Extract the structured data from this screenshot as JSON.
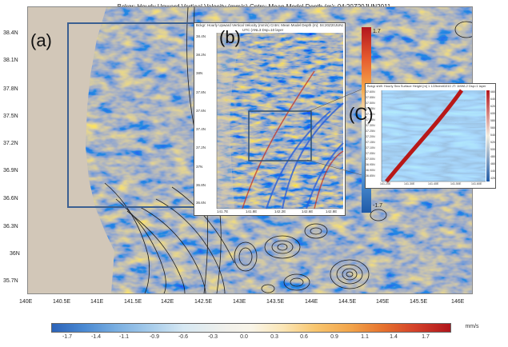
{
  "figure": {
    "title": "Bckgr: Hourly Upward Vertical Velocity (mm/s) Cntrs: Mean Model Depth (m): 04:20Z20JUN2011",
    "colors": {
      "land": "#d2c7b8",
      "frame_blue": "#3b5f91",
      "contour": "#1c1c1c"
    }
  },
  "main_map": {
    "panel_label": "(a)",
    "lat_labels": [
      "38.4N",
      "38.1N",
      "37.8N",
      "37.5N",
      "37.2N",
      "36.9N",
      "36.6N",
      "36.3N",
      "36N",
      "35.7N"
    ],
    "lon_labels": [
      "140E",
      "140.5E",
      "141E",
      "141.5E",
      "142E",
      "142.5E",
      "143E",
      "143.5E",
      "144E",
      "144.5E",
      "145E",
      "145.5E",
      "146E"
    ]
  },
  "inset_b": {
    "panel_label": "(b)",
    "title": "Bckgr: Hourly Upward Vertical Velocity (mm/s) Cntrs: Mean Model Depth (m): 04:20Z20JUN2011",
    "subtitle": "UTC (ANL3 Dsp=10 layer",
    "lat_labels": [
      "38.4N",
      "38.2N",
      "38N",
      "37.8N",
      "37.6N",
      "37.4N",
      "37.2N",
      "37N",
      "36.8N",
      "36.6N"
    ],
    "lon_labels": [
      "141.7E",
      "141.8E",
      "142.2E",
      "142.6E",
      "142.8E"
    ]
  },
  "inset_c": {
    "panel_label": "(C)",
    "title": "Bckgr shift: Hourly Sea Surface Height [m] 1 122bdmit1010 JT: 1MWL2 Dsp=1 layer",
    "cb_top": "1.7",
    "cb_bottom": "-1.7",
    "lat_labels": [
      "37.60N",
      "37.55N",
      "37.50N",
      "37.45N",
      "37.40N",
      "37.35N",
      "37.30N",
      "37.25N",
      "37.20N",
      "37.15N",
      "37.10N",
      "37.05N",
      "37.00N",
      "36.95N",
      "36.90N",
      "36.85N"
    ],
    "lon_labels": [
      "141.20E",
      "141.30E",
      "141.40E",
      "141.50E",
      "141.60E"
    ],
    "right_scale": [
      "668",
      "648",
      "628",
      "608",
      "588",
      "568",
      "548",
      "528",
      "508",
      "488",
      "468",
      "448",
      "428"
    ]
  },
  "colorbar": {
    "ticks": [
      "-1.7",
      "-1.4",
      "-1.1",
      "-0.9",
      "-0.6",
      "-0.3",
      "0.0",
      "0.3",
      "0.6",
      "0.9",
      "1.1",
      "1.4",
      "1.7"
    ],
    "units": "mm/s"
  }
}
